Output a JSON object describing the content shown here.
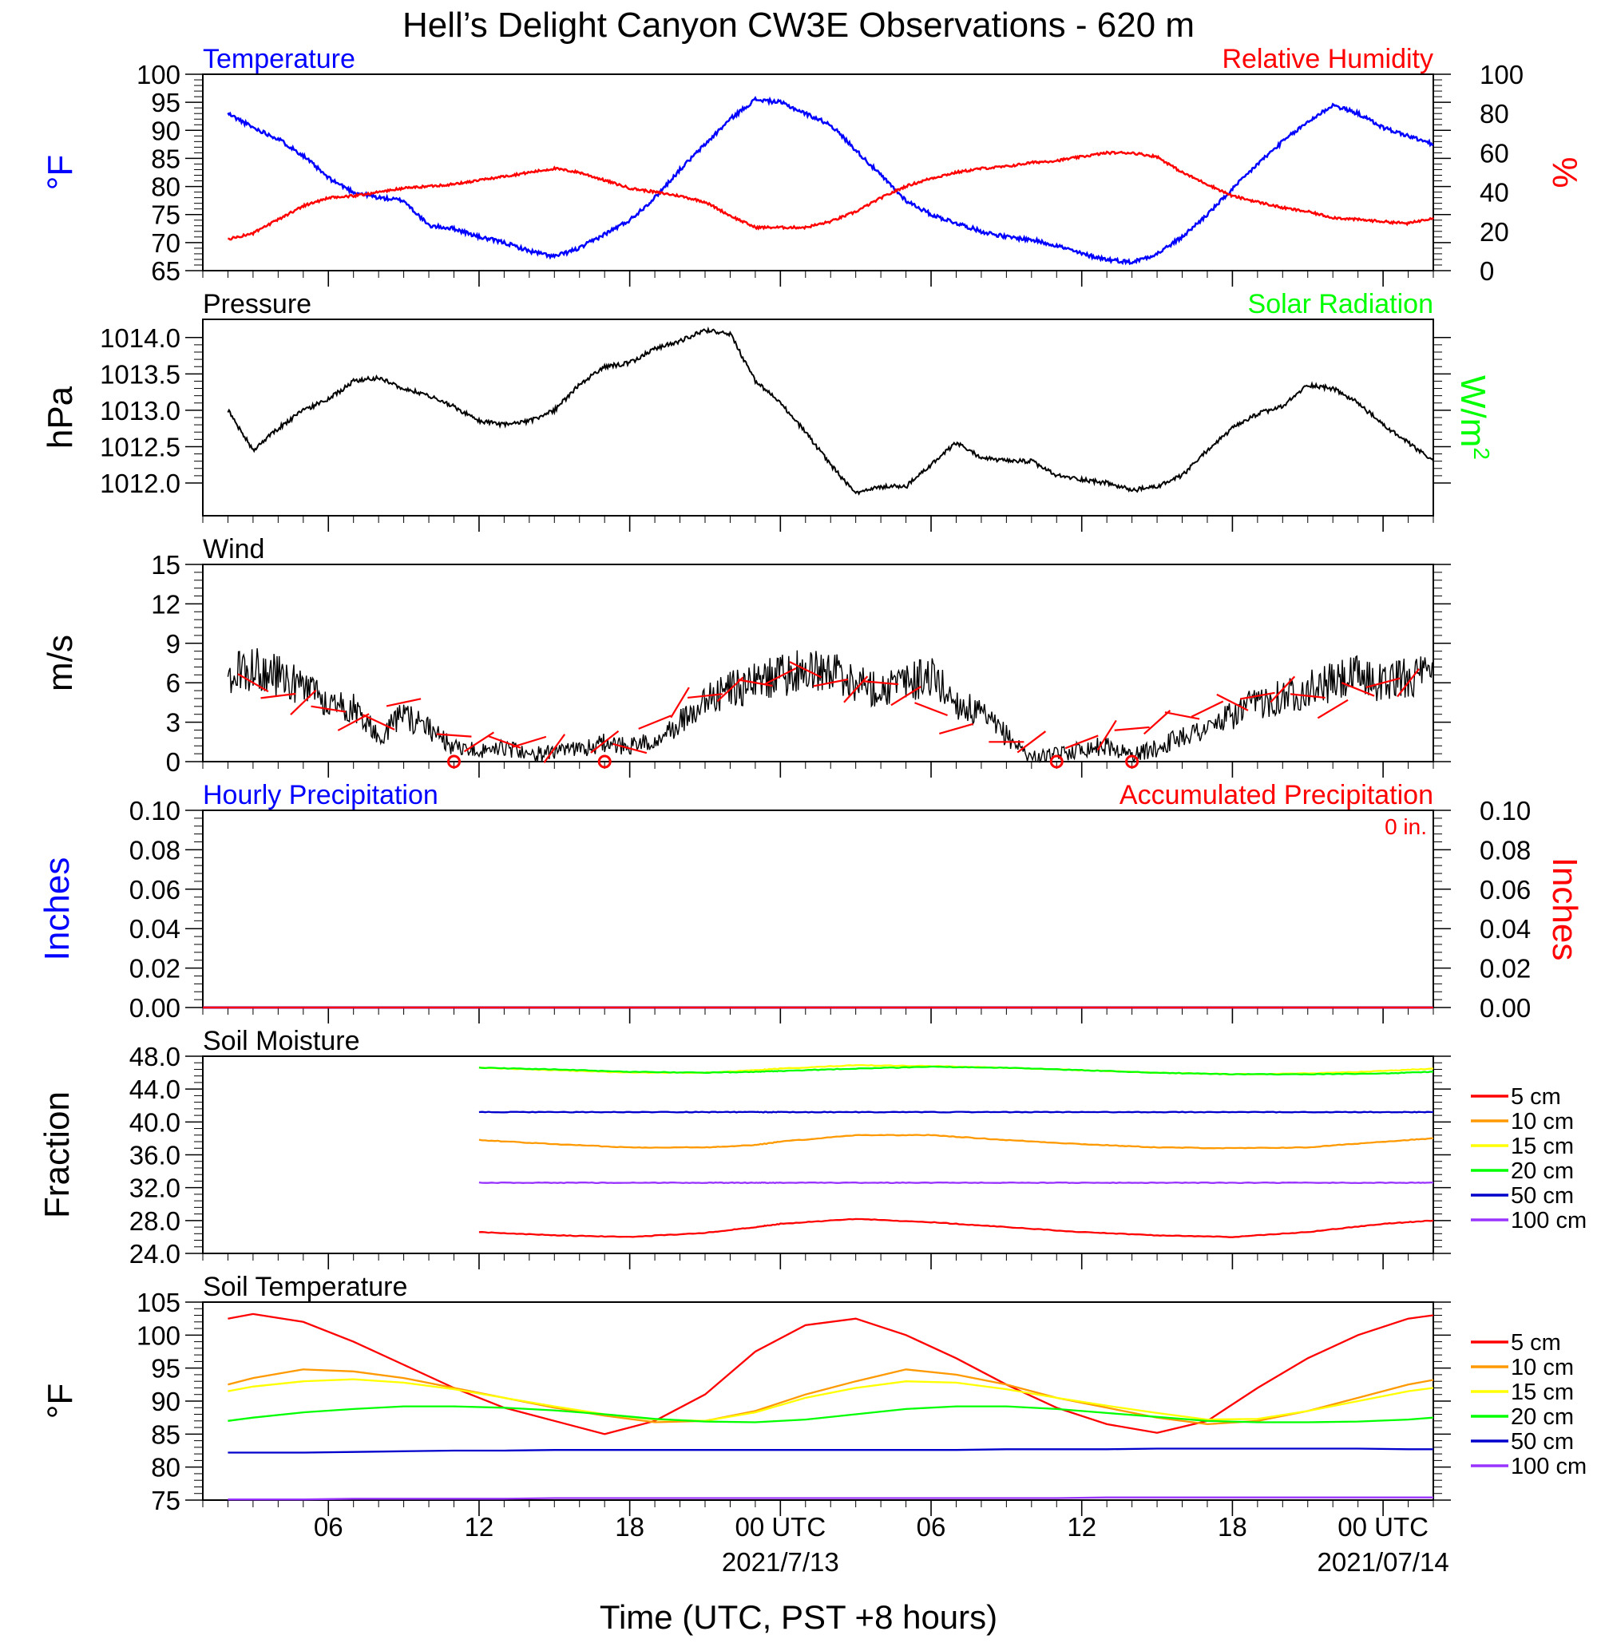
{
  "title": "Hell’s Delight Canyon CW3E Observations - 620 m",
  "x_axis": {
    "ticks": [
      "06",
      "12",
      "18",
      "00 UTC",
      "06",
      "12",
      "18",
      "00 UTC"
    ],
    "dates": [
      "2021/7/13",
      "2021/07/14"
    ],
    "label": "Time (UTC, PST +8 hours)"
  },
  "chart_data": [
    {
      "type": "line",
      "panel": "Temperature / Relative Humidity",
      "title_left": "Temperature",
      "title_right": "Relative Humidity",
      "ylabel_left": "°F",
      "ylabel_right": "%",
      "ylim_left": [
        65,
        100
      ],
      "ylim_right": [
        0,
        100
      ],
      "yticks_left": [
        "65",
        "70",
        "75",
        "80",
        "85",
        "90",
        "95",
        "100"
      ],
      "yticks_right": [
        "0",
        "20",
        "40",
        "60",
        "80",
        "100"
      ],
      "x_hours": [
        1,
        2,
        3,
        4,
        5,
        6,
        7,
        8,
        9,
        10,
        11,
        12,
        13,
        14,
        15,
        16,
        17,
        18,
        19,
        20,
        21,
        22,
        23,
        24,
        25,
        26,
        27,
        28,
        29,
        30,
        31,
        32,
        33,
        34,
        35,
        36,
        37,
        38,
        39,
        40,
        41,
        42,
        43,
        44,
        45,
        46,
        47,
        48,
        49
      ],
      "series": [
        {
          "name": "Temperature",
          "axis": "left",
          "color": "#0000ff",
          "values": [
            93.0,
            90.5,
            88.5,
            85.5,
            81.5,
            79.0,
            78.0,
            77.5,
            73.0,
            72.5,
            71.0,
            70.0,
            68.5,
            67.5,
            69.0,
            71.5,
            74.0,
            78.0,
            83.0,
            87.5,
            92.0,
            95.5,
            95.0,
            93.0,
            91.0,
            86.5,
            82.0,
            77.5,
            75.0,
            73.5,
            72.0,
            71.0,
            70.5,
            69.5,
            68.0,
            67.0,
            66.5,
            68.0,
            71.0,
            75.0,
            79.5,
            84.0,
            88.0,
            91.5,
            94.5,
            93.0,
            90.5,
            89.0,
            87.5
          ]
        },
        {
          "name": "Relative Humidity",
          "axis": "right",
          "color": "#ff0000",
          "values": [
            16,
            19,
            26,
            33,
            37,
            38,
            40,
            42,
            43,
            44,
            46,
            48,
            50,
            52,
            50,
            46,
            42,
            40,
            38,
            35,
            28,
            22,
            22,
            22,
            25,
            30,
            37,
            43,
            47,
            50,
            52,
            53,
            55,
            56,
            58,
            60,
            60,
            58,
            50,
            44,
            38,
            35,
            32,
            30,
            27,
            26,
            25,
            24,
            27
          ]
        }
      ]
    },
    {
      "type": "line",
      "panel": "Pressure / Solar Radiation",
      "title_left": "Pressure",
      "title_right": "Solar Radiation",
      "ylabel_left": "hPa",
      "ylabel_right": "W/m",
      "ylabel_right_sup": "2",
      "ylim": [
        1011.55,
        1014.25
      ],
      "yticks": [
        "1012.0",
        "1012.5",
        "1013.0",
        "1013.5",
        "1014.0"
      ],
      "x_hours": [
        1,
        2,
        3,
        4,
        5,
        6,
        7,
        8,
        9,
        10,
        11,
        12,
        13,
        14,
        15,
        16,
        17,
        18,
        19,
        20,
        21,
        22,
        23,
        24,
        25,
        26,
        27,
        28,
        29,
        30,
        31,
        32,
        33,
        34,
        35,
        36,
        37,
        38,
        39,
        40,
        41,
        42,
        43,
        44,
        45,
        46,
        47,
        48,
        49
      ],
      "series": [
        {
          "name": "Pressure",
          "color": "#000000",
          "values": [
            1013.0,
            1012.45,
            1012.75,
            1013.0,
            1013.15,
            1013.4,
            1013.45,
            1013.3,
            1013.2,
            1013.05,
            1012.85,
            1012.8,
            1012.85,
            1013.0,
            1013.35,
            1013.6,
            1013.65,
            1013.85,
            1013.95,
            1014.1,
            1014.05,
            1013.4,
            1013.1,
            1012.7,
            1012.25,
            1011.85,
            1011.95,
            1011.95,
            1012.25,
            1012.55,
            1012.35,
            1012.3,
            1012.3,
            1012.1,
            1012.05,
            1012.0,
            1011.9,
            1011.95,
            1012.1,
            1012.45,
            1012.75,
            1012.95,
            1013.05,
            1013.35,
            1013.3,
            1013.1,
            1012.8,
            1012.55,
            1012.3
          ]
        }
      ]
    },
    {
      "type": "line",
      "panel": "Wind",
      "title_left": "Wind",
      "ylabel_left": "m/s",
      "ylim": [
        0,
        15
      ],
      "yticks": [
        "0",
        "3",
        "6",
        "9",
        "12",
        "15"
      ],
      "x_hours": [
        1,
        2,
        3,
        4,
        5,
        6,
        7,
        8,
        9,
        10,
        11,
        12,
        13,
        14,
        15,
        16,
        17,
        18,
        19,
        20,
        21,
        22,
        23,
        24,
        25,
        26,
        27,
        28,
        29,
        30,
        31,
        32,
        33,
        34,
        35,
        36,
        37,
        38,
        39,
        40,
        41,
        42,
        43,
        44,
        45,
        46,
        47,
        48,
        49
      ],
      "series": [
        {
          "name": "Wind speed",
          "color": "#000000",
          "values": [
            6.5,
            7.0,
            6.5,
            5.5,
            4.5,
            4.0,
            2.0,
            3.5,
            2.5,
            1.0,
            0.8,
            1.0,
            0.5,
            0.7,
            1.0,
            1.4,
            1.2,
            1.5,
            3.0,
            4.5,
            5.5,
            6.0,
            6.5,
            7.0,
            7.0,
            6.0,
            5.5,
            6.0,
            6.5,
            4.5,
            3.5,
            2.0,
            0.3,
            0.5,
            1.0,
            1.2,
            0.5,
            1.0,
            2.0,
            2.5,
            3.5,
            4.5,
            5.0,
            5.5,
            6.0,
            6.5,
            6.0,
            6.5,
            6.5
          ]
        }
      ],
      "barb_hours": [
        2,
        3,
        4,
        5,
        6,
        7,
        8,
        9,
        10,
        11,
        12,
        13,
        14,
        15,
        16,
        17,
        18,
        19,
        20,
        21,
        22,
        23,
        24,
        25,
        26,
        27,
        28,
        29,
        30,
        31,
        32,
        33,
        34,
        35,
        36,
        37,
        38,
        39,
        40,
        41,
        42,
        43,
        44,
        45,
        46,
        47,
        48
      ],
      "barb_speeds": [
        6,
        5,
        4.5,
        4,
        3,
        3,
        4.5,
        0,
        2,
        1.5,
        1.5,
        1.5,
        1,
        0,
        1.5,
        1,
        3,
        4.5,
        5,
        5.5,
        6,
        6.5,
        7,
        6,
        5.5,
        6,
        5,
        4,
        2.5,
        0,
        1.5,
        1.5,
        0,
        1.5,
        2,
        2.5,
        3,
        3.5,
        4,
        4.5,
        5,
        5.5,
        5,
        4,
        5.5,
        6,
        6
      ],
      "calm_hours": [
        10,
        16,
        34,
        37
      ]
    },
    {
      "type": "line",
      "panel": "Precipitation",
      "title_left": "Hourly Precipitation",
      "title_right": "Accumulated Precipitation",
      "annotation": "0 in.",
      "ylabel_left": "Inches",
      "ylabel_right": "Inches",
      "ylim": [
        0,
        0.1
      ],
      "yticks": [
        "0.00",
        "0.02",
        "0.04",
        "0.06",
        "0.08",
        "0.10"
      ],
      "series": [
        {
          "name": "Hourly Precipitation",
          "color": "#0000ff",
          "values": [
            0,
            0
          ]
        },
        {
          "name": "Accumulated Precipitation",
          "color": "#ff0000",
          "values": [
            0,
            0
          ]
        }
      ]
    },
    {
      "type": "line",
      "panel": "Soil Moisture",
      "title_left": "Soil Moisture",
      "ylabel_left": "Fraction",
      "ylim": [
        24,
        48
      ],
      "yticks": [
        "24.0",
        "28.0",
        "32.0",
        "36.0",
        "40.0",
        "44.0",
        "48.0"
      ],
      "x_hours": [
        11,
        14,
        17,
        20,
        22,
        23,
        26,
        29,
        32,
        35,
        38,
        41,
        44,
        47,
        49
      ],
      "series": [
        {
          "name": "5 cm",
          "color": "#ff0000",
          "values": [
            26.6,
            26.2,
            26.0,
            26.5,
            27.2,
            27.6,
            28.2,
            27.8,
            27.2,
            26.6,
            26.2,
            26.0,
            26.6,
            27.6,
            28.0
          ]
        },
        {
          "name": "10 cm",
          "color": "#ff9900",
          "values": [
            37.8,
            37.3,
            36.9,
            36.9,
            37.2,
            37.6,
            38.4,
            38.4,
            37.8,
            37.3,
            36.9,
            36.8,
            36.9,
            37.6,
            38.0
          ]
        },
        {
          "name": "15 cm",
          "color": "#ffff00",
          "values": [
            46.6,
            46.3,
            46.0,
            46.0,
            46.3,
            46.5,
            46.9,
            46.8,
            46.6,
            46.3,
            46.0,
            45.8,
            45.9,
            46.2,
            46.5
          ]
        },
        {
          "name": "20 cm",
          "color": "#00ff00",
          "values": [
            46.6,
            46.4,
            46.1,
            46.0,
            46.1,
            46.2,
            46.5,
            46.7,
            46.6,
            46.3,
            46.0,
            45.8,
            45.8,
            45.9,
            46.1
          ]
        },
        {
          "name": "50 cm",
          "color": "#0000cc",
          "values": [
            41.2,
            41.2,
            41.2,
            41.2,
            41.2,
            41.2,
            41.2,
            41.2,
            41.2,
            41.2,
            41.2,
            41.2,
            41.2,
            41.2,
            41.2
          ]
        },
        {
          "name": "100 cm",
          "color": "#9933ff",
          "values": [
            32.6,
            32.6,
            32.6,
            32.6,
            32.6,
            32.6,
            32.6,
            32.6,
            32.6,
            32.6,
            32.6,
            32.6,
            32.6,
            32.6,
            32.6
          ]
        }
      ]
    },
    {
      "type": "line",
      "panel": "Soil Temperature",
      "title_left": "Soil Temperature",
      "ylabel_left": "°F",
      "ylim": [
        75,
        105
      ],
      "yticks": [
        "75",
        "80",
        "85",
        "90",
        "95",
        "100",
        "105"
      ],
      "x_hours": [
        1,
        2,
        4,
        6,
        8,
        10,
        12,
        14,
        16,
        18,
        20,
        22,
        24,
        26,
        28,
        30,
        32,
        34,
        36,
        38,
        40,
        42,
        44,
        46,
        48,
        49
      ],
      "series": [
        {
          "name": "5 cm",
          "color": "#ff0000",
          "values": [
            102.5,
            103.2,
            102.0,
            99.0,
            95.5,
            92.0,
            89.0,
            87.0,
            85.0,
            87.0,
            91.0,
            97.5,
            101.5,
            102.5,
            100.0,
            96.5,
            92.5,
            89.0,
            86.5,
            85.2,
            87.0,
            92.0,
            96.5,
            100.0,
            102.5,
            103.0
          ]
        },
        {
          "name": "10 cm",
          "color": "#ff9900",
          "values": [
            92.5,
            93.5,
            94.8,
            94.5,
            93.5,
            92.0,
            90.5,
            89.0,
            87.8,
            86.8,
            87.0,
            88.5,
            91.0,
            93.0,
            94.8,
            94.0,
            92.5,
            90.5,
            89.0,
            87.5,
            86.5,
            87.0,
            88.5,
            90.5,
            92.5,
            93.2
          ]
        },
        {
          "name": "15 cm",
          "color": "#ffff00",
          "values": [
            91.5,
            92.2,
            93.0,
            93.3,
            92.8,
            91.8,
            90.5,
            89.2,
            88.0,
            87.2,
            87.0,
            88.3,
            90.5,
            92.0,
            93.0,
            92.8,
            91.8,
            90.5,
            89.3,
            88.2,
            87.2,
            87.3,
            88.5,
            90.0,
            91.5,
            92.0
          ]
        },
        {
          "name": "20 cm",
          "color": "#00ff00",
          "values": [
            87.0,
            87.5,
            88.3,
            88.8,
            89.2,
            89.2,
            89.0,
            88.6,
            88.0,
            87.3,
            86.9,
            86.8,
            87.2,
            88.0,
            88.8,
            89.2,
            89.2,
            88.8,
            88.2,
            87.6,
            87.0,
            86.8,
            86.8,
            86.9,
            87.2,
            87.5
          ]
        },
        {
          "name": "50 cm",
          "color": "#0000cc",
          "values": [
            82.2,
            82.2,
            82.2,
            82.3,
            82.4,
            82.5,
            82.5,
            82.6,
            82.6,
            82.6,
            82.6,
            82.6,
            82.6,
            82.6,
            82.6,
            82.6,
            82.7,
            82.7,
            82.7,
            82.8,
            82.8,
            82.8,
            82.8,
            82.8,
            82.7,
            82.7
          ]
        },
        {
          "name": "100 cm",
          "color": "#9933ff",
          "values": [
            75.1,
            75.1,
            75.1,
            75.2,
            75.2,
            75.2,
            75.2,
            75.3,
            75.3,
            75.3,
            75.3,
            75.3,
            75.3,
            75.3,
            75.3,
            75.3,
            75.3,
            75.3,
            75.4,
            75.4,
            75.4,
            75.4,
            75.4,
            75.4,
            75.4,
            75.4
          ]
        }
      ]
    }
  ]
}
